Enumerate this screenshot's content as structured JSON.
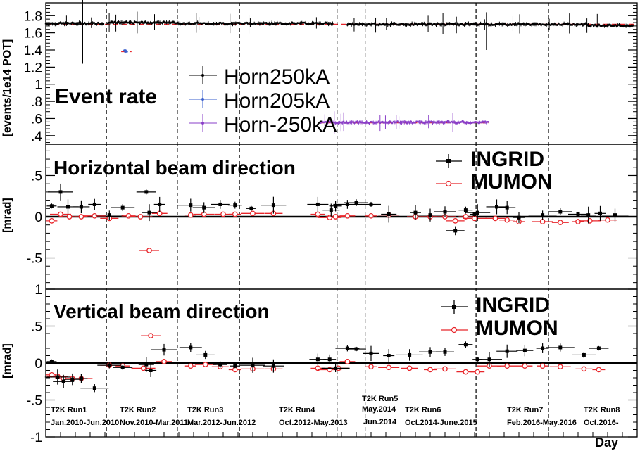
{
  "x_axis_label": "Day",
  "run_labels": [
    {
      "name": "T2K Run1",
      "period": "Jan.2010-Jun.2010"
    },
    {
      "name": "T2K Run2",
      "period": "Nov.2010-Mar.2011"
    },
    {
      "name": "T2K Run3",
      "period": "Mar.2012-Jun.2012"
    },
    {
      "name": "T2K Run4",
      "period": "Oct.2012-May.2013"
    },
    {
      "name": "T2K Run5",
      "period": "May.2014",
      "period2": "Jun.2014"
    },
    {
      "name": "T2K Run6",
      "period": "Oct.2014-June.2015"
    },
    {
      "name": "T2K Run7",
      "period": "Feb.2016-May.2016"
    },
    {
      "name": "T2K Run8",
      "period": "Oct.2016-"
    }
  ],
  "colors": {
    "ingrid": "#000000",
    "mumon": "#e8262b",
    "horn205": "#3a5fcd",
    "hornneg": "#8a3fc8",
    "reference": "#e8262b"
  },
  "chart_data": [
    {
      "type": "scatter",
      "title": "Event rate",
      "ylabel": "[events/1e14 POT]",
      "ylim": [
        0.3,
        1.95
      ],
      "yticks": [
        0.4,
        0.6,
        0.8,
        1,
        1.2,
        1.4,
        1.6,
        1.8
      ],
      "reference_lines": [
        1.7,
        1.38,
        0.55
      ],
      "series": [
        {
          "name": "Horn250kA",
          "segments": [
            [
              0,
              0.195,
              1.71
            ],
            [
              0.21,
              0.44,
              1.72
            ],
            [
              0.445,
              0.97,
              1.71
            ],
            [
              1.02,
              1.83,
              1.7
            ],
            [
              1.83,
              1.985,
              1.685
            ]
          ]
        },
        {
          "name": "Horn205kA",
          "segments": [
            [
              0.265,
              0.275,
              1.385
            ]
          ]
        },
        {
          "name": "Horn-250kA",
          "segments": [
            [
              0.93,
              1.495,
              0.555
            ]
          ]
        }
      ]
    },
    {
      "type": "scatter",
      "title": "Horizontal beam direction",
      "ylabel": "[mrad]",
      "ylim": [
        -0.88,
        0.88
      ],
      "yticks": [
        -0.5,
        0,
        0.5
      ],
      "series": [
        {
          "name": "INGRID",
          "points": [
            [
              0.02,
              0.13
            ],
            [
              0.05,
              0.3
            ],
            [
              0.075,
              0.12
            ],
            [
              0.12,
              0.12
            ],
            [
              0.165,
              0.15
            ],
            [
              0.215,
              0.02
            ],
            [
              0.26,
              0.11
            ],
            [
              0.34,
              0.3
            ],
            [
              0.35,
              0.05
            ],
            [
              0.385,
              0.15
            ],
            [
              0.49,
              0.14
            ],
            [
              0.535,
              0.11
            ],
            [
              0.59,
              0.15
            ],
            [
              0.64,
              0.14
            ],
            [
              0.695,
              0.1
            ],
            [
              0.77,
              0.14
            ],
            [
              0.92,
              0.15
            ],
            [
              0.965,
              0.08
            ],
            [
              0.98,
              0.13
            ],
            [
              1.02,
              0.15
            ],
            [
              1.05,
              0.17
            ],
            [
              1.1,
              0.15
            ],
            [
              1.16,
              0.03
            ],
            [
              1.25,
              0.05
            ],
            [
              1.3,
              0.02
            ],
            [
              1.35,
              0.06
            ],
            [
              1.385,
              -0.17
            ],
            [
              1.42,
              0.08
            ],
            [
              1.45,
              0.03
            ],
            [
              1.46,
              0.05
            ],
            [
              1.525,
              0.12
            ],
            [
              1.56,
              0.11
            ],
            [
              1.6,
              -0.01
            ],
            [
              1.68,
              0.02
            ],
            [
              1.74,
              0.06
            ],
            [
              1.8,
              0.03
            ],
            [
              1.835,
              0.02
            ],
            [
              1.875,
              0.04
            ],
            [
              1.925,
              0.02
            ]
          ]
        },
        {
          "name": "MUMON",
          "points": [
            [
              0.02,
              -0.05
            ],
            [
              0.05,
              0.03
            ],
            [
              0.08,
              0.0
            ],
            [
              0.12,
              0.0
            ],
            [
              0.165,
              0.01
            ],
            [
              0.215,
              -0.02
            ],
            [
              0.28,
              0.01
            ],
            [
              0.32,
              0.0
            ],
            [
              0.35,
              -0.41
            ],
            [
              0.385,
              0.04
            ],
            [
              0.49,
              0.02
            ],
            [
              0.535,
              0.03
            ],
            [
              0.6,
              0.03
            ],
            [
              0.64,
              0.03
            ],
            [
              0.7,
              0.04
            ],
            [
              0.77,
              0.04
            ],
            [
              0.92,
              0.03
            ],
            [
              0.96,
              -0.01
            ],
            [
              0.98,
              0.0
            ],
            [
              1.02,
              0.01
            ],
            [
              1.1,
              0.01
            ],
            [
              1.16,
              0.02
            ],
            [
              1.25,
              0.0
            ],
            [
              1.3,
              0.0
            ],
            [
              1.35,
              0.0
            ],
            [
              1.385,
              -0.05
            ],
            [
              1.42,
              0.0
            ],
            [
              1.45,
              -0.02
            ],
            [
              1.52,
              -0.02
            ],
            [
              1.56,
              -0.04
            ],
            [
              1.6,
              -0.06
            ],
            [
              1.68,
              -0.06
            ],
            [
              1.74,
              -0.07
            ],
            [
              1.8,
              -0.06
            ],
            [
              1.84,
              -0.05
            ],
            [
              1.9,
              -0.04
            ]
          ]
        }
      ]
    },
    {
      "type": "scatter",
      "title": "Vertical beam direction",
      "ylabel": "[mrad]",
      "ylim": [
        -1.0,
        1.0
      ],
      "yticks": [
        -1,
        -0.5,
        0,
        0.5,
        1
      ],
      "series": [
        {
          "name": "INGRID",
          "points": [
            [
              0.02,
              0.02
            ],
            [
              0.04,
              -0.19
            ],
            [
              0.06,
              -0.25
            ],
            [
              0.09,
              -0.22
            ],
            [
              0.12,
              -0.21
            ],
            [
              0.165,
              -0.34
            ],
            [
              0.215,
              -0.03
            ],
            [
              0.26,
              -0.06
            ],
            [
              0.34,
              -0.02
            ],
            [
              0.355,
              -0.1
            ],
            [
              0.4,
              0.18
            ],
            [
              0.49,
              0.21
            ],
            [
              0.54,
              0.11
            ],
            [
              0.59,
              -0.02
            ],
            [
              0.64,
              -0.04
            ],
            [
              0.7,
              -0.03
            ],
            [
              0.77,
              -0.04
            ],
            [
              0.92,
              0.05
            ],
            [
              0.96,
              0.05
            ],
            [
              0.98,
              -0.07
            ],
            [
              1.02,
              0.2
            ],
            [
              1.05,
              0.19
            ],
            [
              1.1,
              0.13
            ],
            [
              1.16,
              0.1
            ],
            [
              1.23,
              0.11
            ],
            [
              1.3,
              0.15
            ],
            [
              1.35,
              0.15
            ],
            [
              1.42,
              0.25
            ],
            [
              1.46,
              0.05
            ],
            [
              1.5,
              0.05
            ],
            [
              1.56,
              0.16
            ],
            [
              1.62,
              0.17
            ],
            [
              1.68,
              0.2
            ],
            [
              1.74,
              0.21
            ],
            [
              1.82,
              0.11
            ],
            [
              1.87,
              0.2
            ]
          ]
        },
        {
          "name": "MUMON",
          "points": [
            [
              0.02,
              -0.16
            ],
            [
              0.04,
              -0.18
            ],
            [
              0.06,
              -0.21
            ],
            [
              0.09,
              -0.21
            ],
            [
              0.12,
              -0.21
            ],
            [
              0.215,
              -0.03
            ],
            [
              0.26,
              -0.04
            ],
            [
              0.33,
              -0.07
            ],
            [
              0.355,
              0.37
            ],
            [
              0.4,
              0.02
            ],
            [
              0.49,
              -0.04
            ],
            [
              0.54,
              -0.02
            ],
            [
              0.59,
              -0.05
            ],
            [
              0.64,
              -0.09
            ],
            [
              0.7,
              -0.08
            ],
            [
              0.77,
              -0.08
            ],
            [
              0.92,
              -0.07
            ],
            [
              0.96,
              -0.09
            ],
            [
              0.99,
              -0.07
            ],
            [
              1.02,
              0.02
            ],
            [
              1.1,
              -0.05
            ],
            [
              1.16,
              -0.06
            ],
            [
              1.23,
              -0.07
            ],
            [
              1.3,
              -0.09
            ],
            [
              1.35,
              -0.08
            ],
            [
              1.42,
              -0.12
            ],
            [
              1.46,
              -0.12
            ],
            [
              1.5,
              -0.04
            ],
            [
              1.56,
              -0.04
            ],
            [
              1.62,
              -0.04
            ],
            [
              1.68,
              -0.04
            ],
            [
              1.74,
              -0.05
            ],
            [
              1.82,
              -0.08
            ],
            [
              1.87,
              -0.09
            ]
          ]
        }
      ]
    }
  ]
}
